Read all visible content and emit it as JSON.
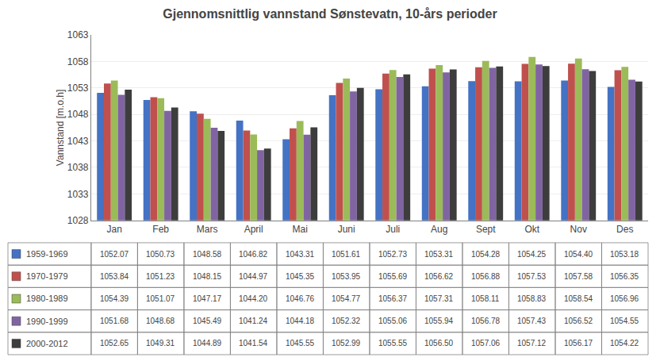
{
  "chart_data": {
    "type": "bar",
    "title": "Gjennomsnittlig vannstand Sønstevatn, 10-års perioder",
    "ylabel": "Vannstand [m.o.h]",
    "categories": [
      "Jan",
      "Feb",
      "Mars",
      "April",
      "Mai",
      "Juni",
      "Juli",
      "Aug",
      "Sept",
      "Okt",
      "Nov",
      "Des"
    ],
    "series": [
      {
        "name": "1959-1969",
        "color": "#4472C4",
        "values": [
          1052.07,
          1050.73,
          1048.58,
          1046.82,
          1043.31,
          1051.61,
          1052.73,
          1053.31,
          1054.28,
          1054.25,
          1054.4,
          1053.18
        ],
        "value_labels": [
          "1052.07",
          "1050.73",
          "1048.58",
          "1046.82",
          "1043.31",
          "1051.61",
          "1052.73",
          "1053.31",
          "1054.28",
          "1054.25",
          "1054.40",
          "1053.18"
        ]
      },
      {
        "name": "1970-1979",
        "color": "#C0504D",
        "values": [
          1053.84,
          1051.23,
          1048.15,
          1044.97,
          1045.35,
          1053.95,
          1055.69,
          1056.62,
          1056.88,
          1057.53,
          1057.58,
          1056.35
        ],
        "value_labels": [
          "1053.84",
          "1051.23",
          "1048.15",
          "1044.97",
          "1045.35",
          "1053.95",
          "1055.69",
          "1056.62",
          "1056.88",
          "1057.53",
          "1057.58",
          "1056.35"
        ]
      },
      {
        "name": "1980-1989",
        "color": "#9BBB59",
        "values": [
          1054.39,
          1051.07,
          1047.17,
          1044.2,
          1046.76,
          1054.77,
          1056.37,
          1057.31,
          1058.11,
          1058.83,
          1058.54,
          1056.96
        ],
        "value_labels": [
          "1054.39",
          "1051.07",
          "1047.17",
          "1044.20",
          "1046.76",
          "1054.77",
          "1056.37",
          "1057.31",
          "1058.11",
          "1058.83",
          "1058.54",
          "1056.96"
        ]
      },
      {
        "name": "1990-1999",
        "color": "#8064A2",
        "values": [
          1051.68,
          1048.68,
          1045.49,
          1041.24,
          1044.18,
          1052.32,
          1055.06,
          1055.94,
          1056.78,
          1057.43,
          1056.52,
          1054.55
        ],
        "value_labels": [
          "1051.68",
          "1048.68",
          "1045.49",
          "1041.24",
          "1044.18",
          "1052.32",
          "1055.06",
          "1055.94",
          "1056.78",
          "1057.43",
          "1056.52",
          "1054.55"
        ]
      },
      {
        "name": "2000-2012",
        "color": "#3D3D3D",
        "values": [
          1052.65,
          1049.31,
          1044.89,
          1041.54,
          1045.55,
          1052.99,
          1055.55,
          1056.5,
          1057.06,
          1057.12,
          1056.17,
          1054.22
        ],
        "value_labels": [
          "1052.65",
          "1049.31",
          "1044.89",
          "1041.54",
          "1045.55",
          "1052.99",
          "1055.55",
          "1056.50",
          "1057.06",
          "1057.12",
          "1056.17",
          "1054.22"
        ]
      }
    ],
    "ylim": [
      1028,
      1063
    ],
    "yticks": [
      1028,
      1033,
      1038,
      1043,
      1048,
      1053,
      1058,
      1063
    ],
    "grid": true
  }
}
